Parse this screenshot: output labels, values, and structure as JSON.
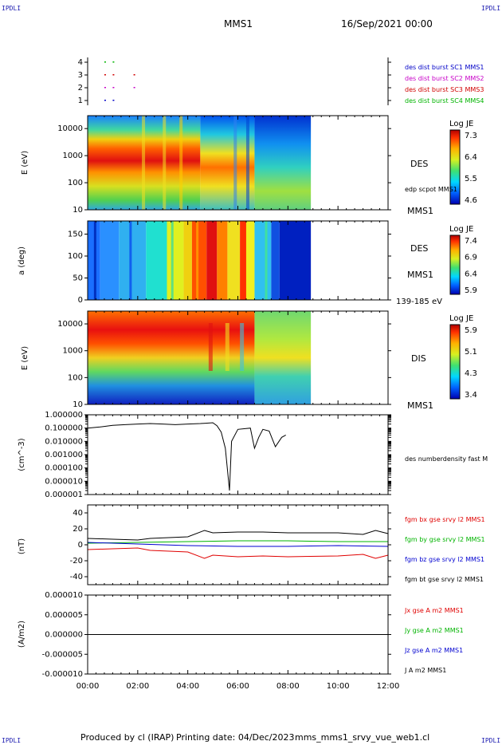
{
  "header": {
    "corner_tl": "IPDLI",
    "corner_tr": "IPDLI",
    "corner_bl": "IPDLI",
    "corner_br": "IPDLI",
    "spacecraft": "MMS1",
    "datetime": "16/Sep/2021 00:00"
  },
  "footer": {
    "produced_by": "Produced by cl (IRAP)",
    "printing_date": "Printing date: 04/Dec/2023",
    "filename": "mms_mms1_srvy_vue_web1.cl"
  },
  "colors": {
    "sc1": "#0000c8",
    "sc2": "#c800c8",
    "sc3": "#d00000",
    "sc4": "#00b400",
    "bx": "#e00000",
    "by": "#00b400",
    "bz": "#0000d0",
    "bt": "#000000"
  },
  "chart_data": [
    {
      "type": "scatter",
      "panel": "burst-availability",
      "y_ticks": [
        "4",
        "3",
        "2",
        "1"
      ],
      "legend": [
        "des dist burst SC1 MMS1",
        "des dist burst SC2 MMS2",
        "des dist burst SC3 MMS3",
        "des dist burst SC4 MMS4"
      ],
      "series": [
        {
          "name": "des dist burst SC4 MMS4",
          "y": 4,
          "x": [
            "00:40",
            "01:00"
          ]
        },
        {
          "name": "des dist burst SC3 MMS3",
          "y": 3,
          "x": [
            "00:40",
            "01:00",
            "01:50"
          ]
        },
        {
          "name": "des dist burst SC2 MMS2",
          "y": 2,
          "x": [
            "00:40",
            "01:00",
            "01:50"
          ]
        },
        {
          "name": "des dist burst SC1 MMS1",
          "y": 1,
          "x": [
            "00:40",
            "01:00"
          ]
        }
      ]
    },
    {
      "type": "heatmap",
      "panel": "des-energy-spectrogram",
      "ylabel": "E (eV)",
      "y_scale": "log",
      "y_ticks": [
        "10000",
        "1000",
        "100",
        "10"
      ],
      "label_right": "DES",
      "label_right2": "edp scpot MMS1",
      "label_bottom": "MMS1",
      "colorbar": {
        "title": "Log JE",
        "ticks": [
          "7.3",
          "6.4",
          "5.5",
          "4.6"
        ]
      },
      "data_end": "08:55"
    },
    {
      "type": "heatmap",
      "panel": "des-pitch-angle",
      "ylabel": "a (deg)",
      "y_ticks": [
        "150",
        "100",
        "50",
        "0"
      ],
      "ylim": [
        0,
        180
      ],
      "label_right": "DES",
      "label_right2": "MMS1",
      "label_bottom": "139-185 eV",
      "colorbar": {
        "title": "Log JE",
        "ticks": [
          "7.4",
          "6.9",
          "6.4",
          "5.9"
        ]
      },
      "data_end": "08:55"
    },
    {
      "type": "heatmap",
      "panel": "dis-energy-spectrogram",
      "ylabel": "E (eV)",
      "y_scale": "log",
      "y_ticks": [
        "10000",
        "1000",
        "100",
        "10"
      ],
      "label_right": "DIS",
      "label_bottom": "MMS1",
      "colorbar": {
        "title": "Log JE",
        "ticks": [
          "5.9",
          "5.1",
          "4.3",
          "3.4"
        ]
      },
      "data_end": "08:55"
    },
    {
      "type": "line",
      "panel": "density",
      "ylabel": "(cm^-3)",
      "y_scale": "log",
      "y_ticks": [
        "1.000000",
        "0.100000",
        "0.010000",
        "0.001000",
        "0.000100",
        "0.000010",
        "0.000001"
      ],
      "series_label": "des numberdensity fast M",
      "series": [
        {
          "x": [
            "00:00",
            "00:30",
            "01:00",
            "01:30",
            "02:00",
            "02:30",
            "03:00",
            "03:30",
            "04:00",
            "04:30",
            "05:00",
            "05:10",
            "05:20",
            "05:30",
            "05:40",
            "05:45",
            "06:00",
            "06:30",
            "06:40",
            "06:50",
            "07:00",
            "07:15",
            "07:30",
            "07:45",
            "07:55"
          ],
          "y": [
            0.1,
            0.12,
            0.16,
            0.18,
            0.2,
            0.22,
            0.2,
            0.18,
            0.2,
            0.22,
            0.25,
            0.15,
            0.05,
            0.003,
            2e-06,
            0.01,
            0.08,
            0.1,
            0.003,
            0.02,
            0.08,
            0.06,
            0.004,
            0.02,
            0.03
          ]
        }
      ]
    },
    {
      "type": "line",
      "panel": "magnetic-field",
      "ylabel": "(nT)",
      "y_ticks": [
        "40",
        "20",
        "0",
        "-20",
        "-40"
      ],
      "ylim": [
        -50,
        50
      ],
      "series": [
        {
          "name": "fgm bx gse srvy l2 MMS1",
          "x": [
            "00:00",
            "01:00",
            "02:00",
            "02:30",
            "04:00",
            "04:40",
            "05:00",
            "06:00",
            "07:00",
            "08:00",
            "10:00",
            "11:00",
            "11:30",
            "12:00"
          ],
          "y": [
            -6,
            -5,
            -4,
            -7,
            -9,
            -17,
            -13,
            -15,
            -14,
            -15,
            -14,
            -12,
            -17,
            -13
          ]
        },
        {
          "name": "fgm by gse srvy l2 MMS1",
          "x": [
            "00:00",
            "02:00",
            "04:00",
            "06:00",
            "08:00",
            "10:00",
            "12:00"
          ],
          "y": [
            2,
            3,
            4,
            5,
            5,
            4,
            4
          ]
        },
        {
          "name": "fgm bz gse srvy l2 MMS1",
          "x": [
            "00:00",
            "02:00",
            "04:00",
            "06:00",
            "08:00",
            "10:00",
            "12:00"
          ],
          "y": [
            3,
            1,
            -1,
            -2,
            -2,
            -1,
            -2
          ]
        },
        {
          "name": "fgm bt gse srvy l2 MMS1",
          "x": [
            "00:00",
            "01:00",
            "02:00",
            "02:30",
            "04:00",
            "04:40",
            "05:00",
            "06:00",
            "07:00",
            "08:00",
            "10:00",
            "11:00",
            "11:30",
            "12:00"
          ],
          "y": [
            8,
            7,
            6,
            8,
            10,
            18,
            15,
            16,
            16,
            15,
            15,
            13,
            18,
            14
          ]
        }
      ]
    },
    {
      "type": "line",
      "panel": "current-density",
      "ylabel": "(A/m2)",
      "y_ticks": [
        "0.000010",
        "0.000005",
        "0.000000",
        "-0.000005",
        "-0.000010"
      ],
      "ylim": [
        -1e-05,
        1e-05
      ],
      "series": [
        {
          "name": "Jx gse A m2 MMS1",
          "x": [
            "00:00",
            "12:00"
          ],
          "y": [
            0,
            0
          ]
        },
        {
          "name": "Jy gse A m2 MMS1",
          "x": [
            "00:00",
            "12:00"
          ],
          "y": [
            0,
            0
          ]
        },
        {
          "name": "Jz gse A m2 MMS1",
          "x": [
            "00:00",
            "12:00"
          ],
          "y": [
            0,
            0
          ]
        },
        {
          "name": "J A m2 MMS1",
          "x": [
            "00:00",
            "12:00"
          ],
          "y": [
            0,
            0
          ]
        }
      ]
    }
  ],
  "x_axis": {
    "ticks": [
      "00:00",
      "02:00",
      "04:00",
      "06:00",
      "08:00",
      "10:00",
      "12:00"
    ]
  }
}
